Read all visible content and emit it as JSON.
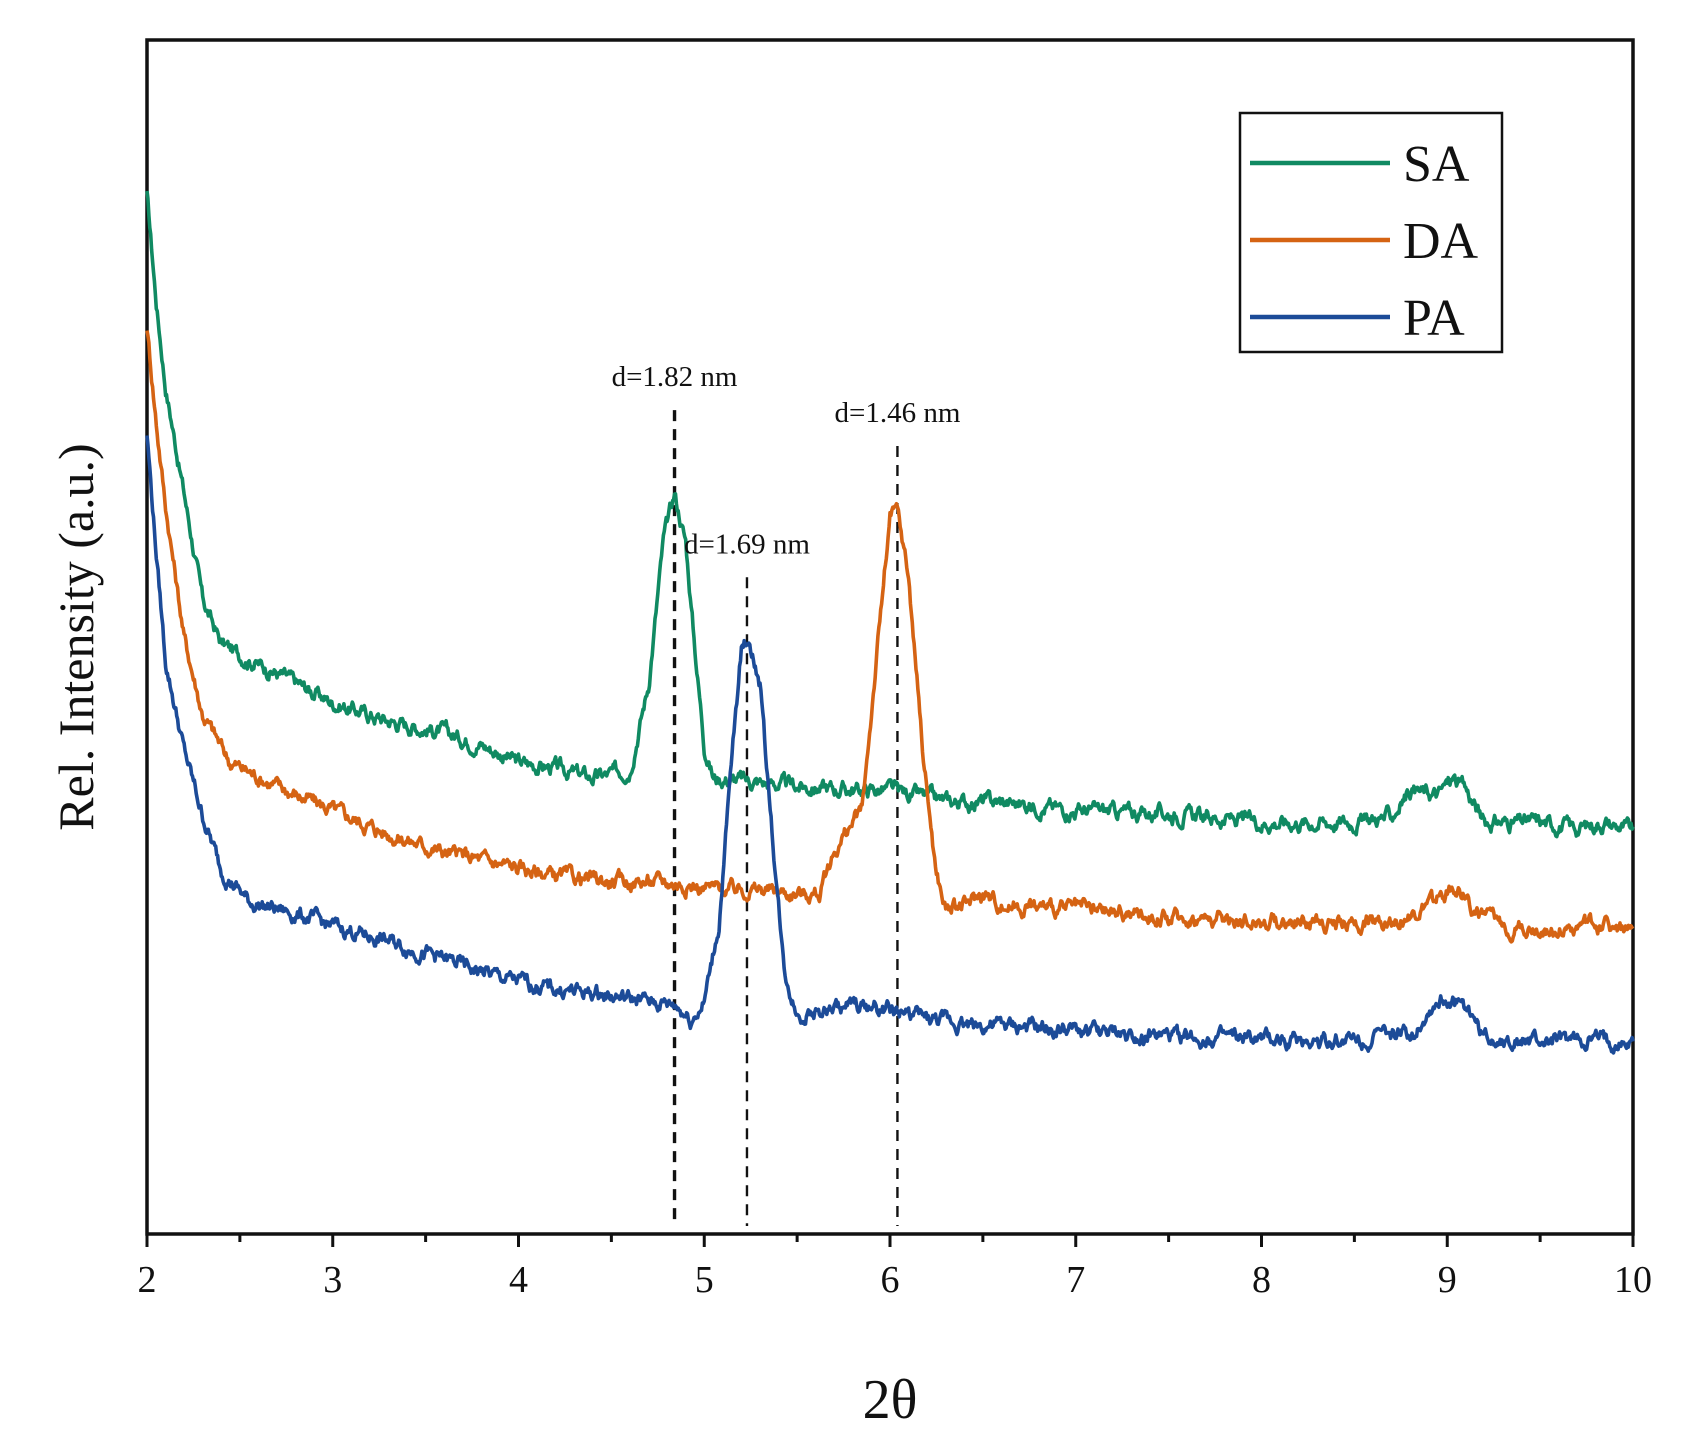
{
  "chart_data": {
    "type": "line",
    "title": "",
    "xlabel": "2θ",
    "ylabel": "Rel. Intensity (a.u.)",
    "xlim": [
      2,
      10
    ],
    "ylim": [
      0,
      10
    ],
    "x_ticks": [
      2,
      3,
      4,
      5,
      6,
      7,
      8,
      9,
      10
    ],
    "x_tick_labels": [
      "2",
      "3",
      "4",
      "5",
      "6",
      "7",
      "8",
      "9",
      "10"
    ],
    "y_ticks_shown": false,
    "grid": false,
    "legend_position": "top-right",
    "series": [
      {
        "name": "SA",
        "color": "#108a62",
        "points": [
          [
            2.0,
            8.7
          ],
          [
            2.05,
            7.8
          ],
          [
            2.1,
            7.1
          ],
          [
            2.2,
            6.2
          ],
          [
            2.3,
            5.3
          ],
          [
            2.4,
            4.95
          ],
          [
            2.5,
            4.85
          ],
          [
            2.7,
            4.7
          ],
          [
            3.0,
            4.45
          ],
          [
            3.3,
            4.3
          ],
          [
            3.6,
            4.2
          ],
          [
            3.8,
            4.1
          ],
          [
            4.0,
            3.95
          ],
          [
            4.2,
            3.9
          ],
          [
            4.4,
            3.82
          ],
          [
            4.5,
            3.85
          ],
          [
            4.6,
            3.9
          ],
          [
            4.7,
            4.6
          ],
          [
            4.78,
            5.8
          ],
          [
            4.84,
            6.2
          ],
          [
            4.9,
            5.8
          ],
          [
            4.95,
            4.9
          ],
          [
            5.0,
            4.1
          ],
          [
            5.05,
            3.82
          ],
          [
            5.2,
            3.8
          ],
          [
            5.5,
            3.75
          ],
          [
            5.8,
            3.72
          ],
          [
            6.0,
            3.72
          ],
          [
            6.3,
            3.62
          ],
          [
            6.6,
            3.62
          ],
          [
            7.0,
            3.55
          ],
          [
            7.5,
            3.52
          ],
          [
            8.0,
            3.45
          ],
          [
            8.5,
            3.45
          ],
          [
            8.7,
            3.5
          ],
          [
            8.8,
            3.72
          ],
          [
            8.95,
            3.68
          ],
          [
            9.03,
            3.82
          ],
          [
            9.1,
            3.72
          ],
          [
            9.2,
            3.45
          ],
          [
            9.5,
            3.45
          ],
          [
            9.7,
            3.4
          ],
          [
            9.85,
            3.45
          ],
          [
            10.0,
            3.38
          ]
        ]
      },
      {
        "name": "DA",
        "color": "#d56313",
        "points": [
          [
            2.0,
            7.6
          ],
          [
            2.05,
            6.8
          ],
          [
            2.1,
            6.1
          ],
          [
            2.2,
            5.0
          ],
          [
            2.3,
            4.35
          ],
          [
            2.45,
            3.95
          ],
          [
            2.7,
            3.75
          ],
          [
            3.0,
            3.55
          ],
          [
            3.3,
            3.35
          ],
          [
            3.6,
            3.2
          ],
          [
            3.9,
            3.1
          ],
          [
            4.2,
            3.0
          ],
          [
            4.5,
            2.95
          ],
          [
            4.8,
            2.95
          ],
          [
            5.0,
            2.9
          ],
          [
            5.3,
            2.88
          ],
          [
            5.5,
            2.85
          ],
          [
            5.62,
            2.85
          ],
          [
            5.7,
            3.2
          ],
          [
            5.78,
            3.4
          ],
          [
            5.85,
            3.55
          ],
          [
            5.92,
            4.7
          ],
          [
            6.0,
            6.0
          ],
          [
            6.04,
            6.05
          ],
          [
            6.1,
            5.5
          ],
          [
            6.18,
            4.0
          ],
          [
            6.25,
            3.0
          ],
          [
            6.3,
            2.72
          ],
          [
            6.4,
            2.75
          ],
          [
            6.5,
            2.85
          ],
          [
            6.6,
            2.75
          ],
          [
            7.0,
            2.72
          ],
          [
            7.5,
            2.65
          ],
          [
            8.0,
            2.62
          ],
          [
            8.5,
            2.6
          ],
          [
            8.8,
            2.65
          ],
          [
            8.95,
            2.8
          ],
          [
            9.05,
            2.92
          ],
          [
            9.15,
            2.7
          ],
          [
            9.3,
            2.58
          ],
          [
            9.6,
            2.55
          ],
          [
            9.85,
            2.6
          ],
          [
            10.0,
            2.52
          ]
        ]
      },
      {
        "name": "PA",
        "color": "#1c4b98",
        "points": [
          [
            2.0,
            6.7
          ],
          [
            2.05,
            5.7
          ],
          [
            2.1,
            4.8
          ],
          [
            2.2,
            4.05
          ],
          [
            2.3,
            3.5
          ],
          [
            2.4,
            3.05
          ],
          [
            2.55,
            2.78
          ],
          [
            2.8,
            2.68
          ],
          [
            3.0,
            2.58
          ],
          [
            3.3,
            2.45
          ],
          [
            3.6,
            2.3
          ],
          [
            3.9,
            2.15
          ],
          [
            4.2,
            2.05
          ],
          [
            4.5,
            2.0
          ],
          [
            4.7,
            1.95
          ],
          [
            4.85,
            1.92
          ],
          [
            4.93,
            1.8
          ],
          [
            5.0,
            1.95
          ],
          [
            5.08,
            2.6
          ],
          [
            5.15,
            4.0
          ],
          [
            5.2,
            4.9
          ],
          [
            5.24,
            5.0
          ],
          [
            5.3,
            4.6
          ],
          [
            5.37,
            3.3
          ],
          [
            5.43,
            2.2
          ],
          [
            5.5,
            1.85
          ],
          [
            5.6,
            1.85
          ],
          [
            5.8,
            1.92
          ],
          [
            6.0,
            1.88
          ],
          [
            6.2,
            1.8
          ],
          [
            6.5,
            1.75
          ],
          [
            7.0,
            1.7
          ],
          [
            7.5,
            1.65
          ],
          [
            8.0,
            1.62
          ],
          [
            8.5,
            1.63
          ],
          [
            8.8,
            1.68
          ],
          [
            8.95,
            1.95
          ],
          [
            9.05,
            1.95
          ],
          [
            9.15,
            1.8
          ],
          [
            9.2,
            1.65
          ],
          [
            9.5,
            1.6
          ],
          [
            9.8,
            1.62
          ],
          [
            10.0,
            1.58
          ]
        ]
      }
    ],
    "reference_lines": [
      {
        "x": 4.84,
        "top": 6.9,
        "label": "d=1.82 nm",
        "weight": "bold"
      },
      {
        "x": 5.23,
        "top": 5.5,
        "label": "d=1.69 nm",
        "weight": "normal"
      },
      {
        "x": 6.04,
        "top": 6.6,
        "label": "d=1.46 nm",
        "weight": "normal"
      }
    ]
  }
}
